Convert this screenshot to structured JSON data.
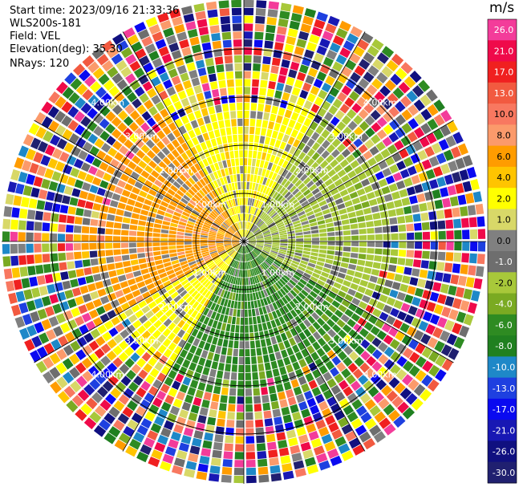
{
  "header": {
    "start_time": "Start time: 2023/09/16 21:33:36",
    "instrument": "WLS200s-181",
    "field": "Field: VEL",
    "elevation": "Elevation(deg): 35.30",
    "nrays": "NRays: 120"
  },
  "colorbar": {
    "unit": "m/s",
    "ticks": [
      "26.0",
      "21.0",
      "17.0",
      "13.0",
      "10.0",
      "8.0",
      "6.0",
      "4.0",
      "2.0",
      "1.0",
      "0.0",
      "-1.0",
      "-2.0",
      "-4.0",
      "-6.0",
      "-8.0",
      "-10.0",
      "-13.0",
      "-17.0",
      "-21.0",
      "-26.0",
      "-30.0"
    ],
    "colors": [
      "#f33c9a",
      "#ef0a4a",
      "#f02020",
      "#f25a40",
      "#f87860",
      "#fb9a6b",
      "#ff9c00",
      "#ffc400",
      "#ffff00",
      "#d8d868",
      "#808080",
      "#6e6e6e",
      "#a8c83a",
      "#7aaa22",
      "#2e8b22",
      "#208020",
      "#1e88c8",
      "#1e40e0",
      "#0a0af0",
      "#1818b4",
      "#101080",
      "#202070"
    ]
  },
  "chart_data": {
    "type": "ppi",
    "range_rings": [
      {
        "label": "1.00km"
      },
      {
        "label": "2.00km"
      },
      {
        "label": "3.00km"
      },
      {
        "label": "4.00km"
      }
    ],
    "nrays": 120
  }
}
